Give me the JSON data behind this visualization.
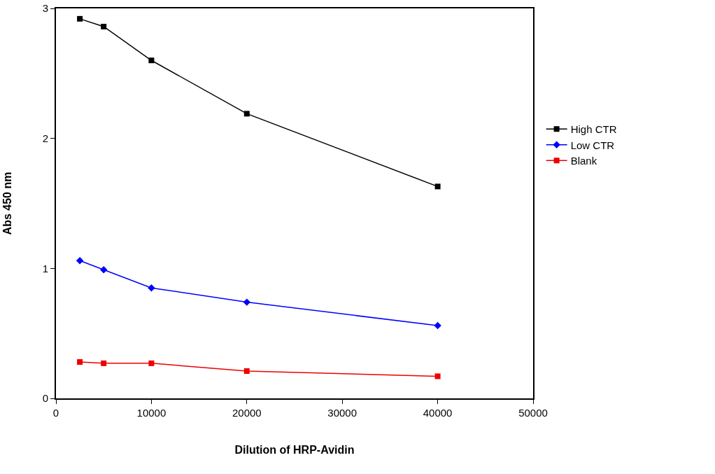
{
  "chart_data": {
    "type": "line",
    "xlabel": "Dilution of HRP-Avidin",
    "ylabel": "Abs 450 nm",
    "x": [
      2500,
      5000,
      10000,
      20000,
      40000
    ],
    "series": [
      {
        "name": "High CTR",
        "color": "#000000",
        "marker": "square",
        "values": [
          2.92,
          2.86,
          2.6,
          2.19,
          1.63
        ]
      },
      {
        "name": "Low CTR",
        "color": "#0000ff",
        "marker": "diamond",
        "values": [
          1.06,
          0.99,
          0.85,
          0.74,
          0.56
        ]
      },
      {
        "name": "Blank",
        "color": "#ee0000",
        "marker": "square",
        "values": [
          0.28,
          0.27,
          0.27,
          0.21,
          0.17
        ]
      }
    ],
    "xlim": [
      0,
      50000
    ],
    "xticks": [
      0,
      10000,
      20000,
      30000,
      40000,
      50000
    ],
    "ylim": [
      0,
      3
    ],
    "yticks": [
      0,
      1,
      2,
      3
    ],
    "grid": false,
    "legend": "right",
    "line_style": "solid"
  }
}
